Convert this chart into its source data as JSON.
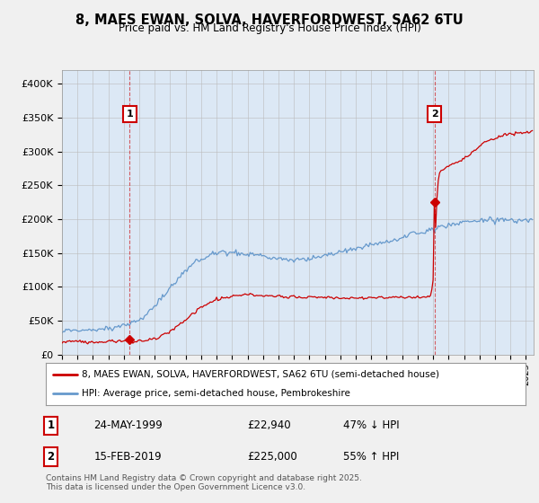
{
  "title_line1": "8, MAES EWAN, SOLVA, HAVERFORDWEST, SA62 6TU",
  "title_line2": "Price paid vs. HM Land Registry's House Price Index (HPI)",
  "background_color": "#f0f0f0",
  "plot_bg_color": "#dce8f5",
  "red_color": "#cc0000",
  "blue_color": "#6699cc",
  "sale1_price": 22940,
  "sale1_year": 1999.375,
  "sale2_price": 225000,
  "sale2_year": 2019.083,
  "sale1_date": "24-MAY-1999",
  "sale1_text": "£22,940",
  "sale1_hpi": "47% ↓ HPI",
  "sale2_date": "15-FEB-2019",
  "sale2_text": "£225,000",
  "sale2_hpi": "55% ↑ HPI",
  "legend_entry1": "8, MAES EWAN, SOLVA, HAVERFORDWEST, SA62 6TU (semi-detached house)",
  "legend_entry2": "HPI: Average price, semi-detached house, Pembrokeshire",
  "footer": "Contains HM Land Registry data © Crown copyright and database right 2025.\nThis data is licensed under the Open Government Licence v3.0.",
  "ylim": [
    0,
    420000
  ],
  "yticks": [
    0,
    50000,
    100000,
    150000,
    200000,
    250000,
    300000,
    350000,
    400000
  ],
  "ytick_labels": [
    "£0",
    "£50K",
    "£100K",
    "£150K",
    "£200K",
    "£250K",
    "£300K",
    "£350K",
    "£400K"
  ],
  "xmin": 1995,
  "xmax": 2025.5
}
